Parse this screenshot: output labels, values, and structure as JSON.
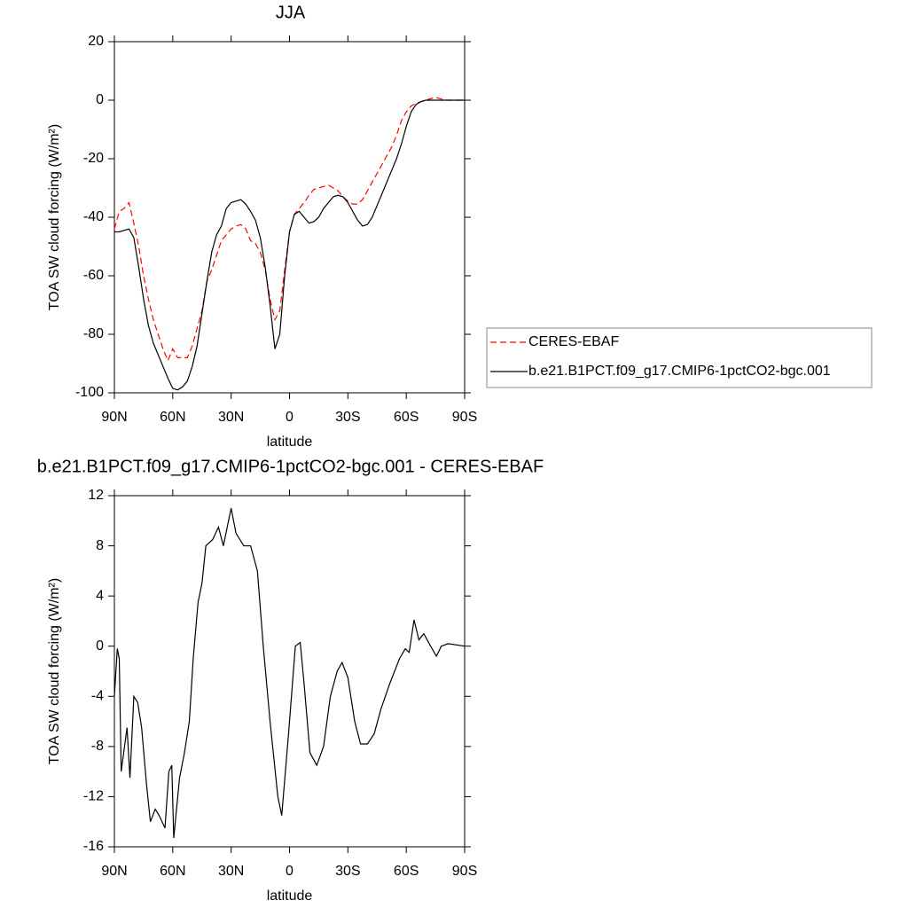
{
  "chart_data": [
    {
      "type": "line",
      "title": "JJA",
      "xlabel": "latitude",
      "ylabel": "TOA SW cloud forcing (W/m²)",
      "x": [
        90,
        87.5,
        85,
        82.5,
        80,
        77.5,
        75,
        72.5,
        70,
        67.5,
        65,
        62.5,
        60,
        57.5,
        55,
        52.5,
        50,
        47.5,
        45,
        42.5,
        40,
        37.5,
        35,
        32.5,
        30,
        27.5,
        25,
        22.5,
        20,
        17.5,
        15,
        12.5,
        10,
        7.5,
        5,
        2.5,
        0,
        -2.5,
        -5,
        -7.5,
        -10,
        -12.5,
        -15,
        -17.5,
        -20,
        -22.5,
        -25,
        -27.5,
        -30,
        -32.5,
        -35,
        -37.5,
        -40,
        -42.5,
        -45,
        -47.5,
        -50,
        -52.5,
        -55,
        -57.5,
        -60,
        -62.5,
        -65,
        -67.5,
        -70,
        -75,
        -80,
        -85,
        -90
      ],
      "series": [
        {
          "name": "CERES-EBAF",
          "color": "#ff0000",
          "linestyle": "dashed",
          "values": [
            -44,
            -38,
            -37,
            -35,
            -42,
            -50,
            -60,
            -68,
            -75,
            -80,
            -85,
            -89,
            -85,
            -88,
            -88,
            -88,
            -84,
            -78,
            -72,
            -62,
            -58,
            -53,
            -48,
            -46,
            -44,
            -43,
            -42.5,
            -44,
            -48,
            -49,
            -52,
            -58,
            -68,
            -75,
            -72,
            -58,
            -45,
            -39,
            -37,
            -35,
            -32.5,
            -30.5,
            -30,
            -29.5,
            -29,
            -30,
            -31,
            -33,
            -34.5,
            -35.5,
            -35.5,
            -34,
            -31,
            -28,
            -25,
            -22,
            -19,
            -16,
            -12,
            -7,
            -4,
            -2,
            -1,
            -0.5,
            0,
            1,
            0,
            0,
            0
          ]
        },
        {
          "name": "b.e21.B1PCT.f09_g17.CMIP6-1pctCO2-bgc.001",
          "color": "#000000",
          "linestyle": "solid",
          "values": [
            -45,
            -45,
            -44.5,
            -44,
            -47,
            -57,
            -68,
            -77,
            -83,
            -87,
            -91,
            -95,
            -98.5,
            -99,
            -98,
            -96,
            -91,
            -84,
            -73,
            -62,
            -52,
            -46,
            -43,
            -37,
            -35,
            -34.5,
            -34,
            -35.5,
            -38,
            -41,
            -47,
            -57,
            -70,
            -85,
            -80,
            -60,
            -45,
            -39,
            -38,
            -40,
            -42,
            -41.5,
            -40,
            -37,
            -35,
            -33,
            -32.5,
            -33,
            -35,
            -38,
            -41,
            -43,
            -42.5,
            -40,
            -36,
            -32,
            -28,
            -24,
            -20,
            -15,
            -9,
            -4,
            -1.5,
            -0.5,
            0,
            0,
            0,
            0,
            0
          ]
        }
      ],
      "xlim": [
        90,
        -90
      ],
      "xticks": [
        {
          "value": 90,
          "label": "90N"
        },
        {
          "value": 60,
          "label": "60N"
        },
        {
          "value": 30,
          "label": "30N"
        },
        0,
        {
          "value": -30,
          "label": "30S"
        },
        {
          "value": -60,
          "label": "60S"
        },
        {
          "value": -90,
          "label": "90S"
        }
      ],
      "ylim": [
        -100,
        20
      ],
      "yticks": [
        -100,
        -80,
        -60,
        -40,
        -20,
        0,
        20
      ],
      "legend": "right"
    },
    {
      "type": "line",
      "title": "b.e21.B1PCT.f09_g17.CMIP6-1pctCO2-bgc.001 - CERES-EBAF",
      "xlabel": "latitude",
      "ylabel": "TOA SW cloud forcing (W/m²)",
      "x": [
        90,
        88.5,
        87.5,
        86.5,
        83.5,
        82,
        80,
        78,
        76,
        73.5,
        71.5,
        69,
        67,
        64,
        62,
        60.5,
        59.5,
        56.5,
        54,
        51.5,
        49.5,
        47,
        45,
        43,
        39.5,
        36.5,
        34,
        32,
        30,
        27.5,
        23.5,
        20,
        16.5,
        13.5,
        10,
        6,
        4,
        0.5,
        -3,
        -5.5,
        -7.5,
        -10.5,
        -14,
        -17.5,
        -21,
        -24.5,
        -27,
        -30,
        -33.5,
        -36.5,
        -40,
        -43.5,
        -47,
        -51.5,
        -56.5,
        -59.5,
        -61.5,
        -64,
        -66.5,
        -69,
        -72.5,
        -75.5,
        -78,
        -81.5,
        -90
      ],
      "series": [
        {
          "color": "#000000",
          "linestyle": "solid",
          "values": [
            -4,
            -0.2,
            -1,
            -10,
            -6.5,
            -10.5,
            -4,
            -4.5,
            -6.5,
            -11,
            -14,
            -13,
            -13.5,
            -14.5,
            -10,
            -9.5,
            -15.3,
            -10.5,
            -8.5,
            -6,
            -1,
            3.5,
            5,
            8,
            8.5,
            9.5,
            8,
            9.5,
            11,
            9,
            8,
            8,
            6,
            0,
            -6,
            -12,
            -13.5,
            -7,
            0,
            0.3,
            -3,
            -8.5,
            -9.5,
            -8,
            -4,
            -2,
            -1.3,
            -2.5,
            -6,
            -7.8,
            -7.8,
            -7,
            -5,
            -3,
            -1,
            -0.2,
            -0.5,
            2.1,
            0.5,
            1,
            0,
            -0.8,
            0,
            0.2,
            0
          ]
        }
      ],
      "xlim": [
        90,
        -90
      ],
      "xticks": [
        {
          "value": 90,
          "label": "90N"
        },
        {
          "value": 60,
          "label": "60N"
        },
        {
          "value": 30,
          "label": "30N"
        },
        0,
        {
          "value": -30,
          "label": "30S"
        },
        {
          "value": -60,
          "label": "60S"
        },
        {
          "value": -90,
          "label": "90S"
        }
      ],
      "ylim": [
        -16,
        12
      ],
      "yticks": [
        -16,
        -12,
        -8,
        -4,
        0,
        4,
        8,
        12
      ]
    }
  ]
}
